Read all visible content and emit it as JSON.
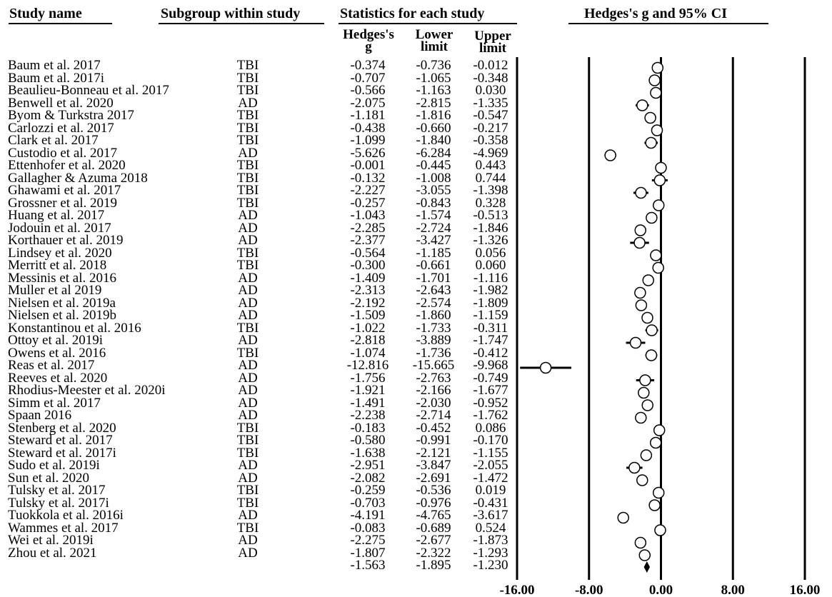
{
  "headers": {
    "study_name": "Study name",
    "subgroup": "Subgroup within study",
    "statistics": "Statistics for each study",
    "ci": "Hedges's g and 95% CI",
    "g_line1": "Hedges's",
    "g_line2": "g",
    "lower_line1": "Lower",
    "lower_line2": "limit",
    "upper_line1": "Upper",
    "upper_line2": "limit"
  },
  "chart_data": {
    "type": "forest",
    "x_ticks": [
      "-16.00",
      "-8.00",
      "0.00",
      "8.00",
      "16.00"
    ],
    "xlim": [
      -16,
      16
    ],
    "studies": [
      {
        "name": "Baum et al. 2017",
        "group": "TBI",
        "g": "-0.374",
        "lower": "-0.736",
        "upper": "-0.012"
      },
      {
        "name": "Baum et al. 2017i",
        "group": "TBI",
        "g": "-0.707",
        "lower": "-1.065",
        "upper": "-0.348"
      },
      {
        "name": "Beaulieu-Bonneau et al. 2017",
        "group": "TBI",
        "g": "-0.566",
        "lower": "-1.163",
        "upper": "0.030"
      },
      {
        "name": "Benwell et al. 2020",
        "group": "AD",
        "g": "-2.075",
        "lower": "-2.815",
        "upper": "-1.335"
      },
      {
        "name": "Byom & Turkstra 2017",
        "group": "TBI",
        "g": "-1.181",
        "lower": "-1.816",
        "upper": "-0.547"
      },
      {
        "name": "Carlozzi et al. 2017",
        "group": "TBI",
        "g": "-0.438",
        "lower": "-0.660",
        "upper": "-0.217"
      },
      {
        "name": "Clark et al. 2017",
        "group": "TBI",
        "g": "-1.099",
        "lower": "-1.840",
        "upper": "-0.358"
      },
      {
        "name": "Custodio et al. 2017",
        "group": "AD",
        "g": "-5.626",
        "lower": "-6.284",
        "upper": "-4.969"
      },
      {
        "name": "Ettenhofer et al. 2020",
        "group": "TBI",
        "g": "-0.001",
        "lower": "-0.445",
        "upper": "0.443"
      },
      {
        "name": "Gallagher & Azuma 2018",
        "group": "TBI",
        "g": "-0.132",
        "lower": "-1.008",
        "upper": "0.744"
      },
      {
        "name": "Ghawami et al. 2017",
        "group": "TBI",
        "g": "-2.227",
        "lower": "-3.055",
        "upper": "-1.398"
      },
      {
        "name": "Grossner et al. 2019",
        "group": "TBI",
        "g": "-0.257",
        "lower": "-0.843",
        "upper": "0.328"
      },
      {
        "name": "Huang et al. 2017",
        "group": "AD",
        "g": "-1.043",
        "lower": "-1.574",
        "upper": "-0.513"
      },
      {
        "name": "Jodouin et al. 2017",
        "group": "AD",
        "g": "-2.285",
        "lower": "-2.724",
        "upper": "-1.846"
      },
      {
        "name": "Korthauer et al. 2019",
        "group": "AD",
        "g": "-2.377",
        "lower": "-3.427",
        "upper": "-1.326"
      },
      {
        "name": "Lindsey et al. 2020",
        "group": "TBI",
        "g": "-0.564",
        "lower": "-1.185",
        "upper": "0.056"
      },
      {
        "name": "Merritt et al. 2018",
        "group": "TBI",
        "g": "-0.300",
        "lower": "-0.661",
        "upper": "0.060"
      },
      {
        "name": "Messinis et al. 2016",
        "group": "AD",
        "g": "-1.409",
        "lower": "-1.701",
        "upper": "-1.116"
      },
      {
        "name": "Muller et al 2019",
        "group": "AD",
        "g": "-2.313",
        "lower": "-2.643",
        "upper": "-1.982"
      },
      {
        "name": "Nielsen et al. 2019a",
        "group": "AD",
        "g": "-2.192",
        "lower": "-2.574",
        "upper": "-1.809"
      },
      {
        "name": "Nielsen et al. 2019b",
        "group": "AD",
        "g": "-1.509",
        "lower": "-1.860",
        "upper": "-1.159"
      },
      {
        "name": "Konstantinou et al. 2016",
        "group": "TBI",
        "g": "-1.022",
        "lower": "-1.733",
        "upper": "-0.311"
      },
      {
        "name": "Ottoy et al. 2019i",
        "group": "AD",
        "g": "-2.818",
        "lower": "-3.889",
        "upper": "-1.747"
      },
      {
        "name": "Owens et al. 2016",
        "group": "TBI",
        "g": "-1.074",
        "lower": "-1.736",
        "upper": "-0.412"
      },
      {
        "name": "Reas et al. 2017",
        "group": "AD",
        "g": "-12.816",
        "lower": "-15.665",
        "upper": "-9.968"
      },
      {
        "name": "Reeves et al. 2020",
        "group": "AD",
        "g": "-1.756",
        "lower": "-2.763",
        "upper": "-0.749"
      },
      {
        "name": "Rhodius-Meester et al. 2020i",
        "group": "AD",
        "g": "-1.921",
        "lower": "-2.166",
        "upper": "-1.677"
      },
      {
        "name": "Simm et al. 2017",
        "group": "AD",
        "g": "-1.491",
        "lower": "-2.030",
        "upper": "-0.952"
      },
      {
        "name": "Spaan 2016",
        "group": "AD",
        "g": "-2.238",
        "lower": "-2.714",
        "upper": "-1.762"
      },
      {
        "name": "Stenberg et al. 2020",
        "group": "TBI",
        "g": "-0.183",
        "lower": "-0.452",
        "upper": "0.086"
      },
      {
        "name": "Steward et al. 2017",
        "group": "TBI",
        "g": "-0.580",
        "lower": "-0.991",
        "upper": "-0.170"
      },
      {
        "name": "Steward et al. 2017i",
        "group": "TBI",
        "g": "-1.638",
        "lower": "-2.121",
        "upper": "-1.155"
      },
      {
        "name": "Sudo et al. 2019i",
        "group": "AD",
        "g": "-2.951",
        "lower": "-3.847",
        "upper": "-2.055"
      },
      {
        "name": "Sun et al. 2020",
        "group": "AD",
        "g": "-2.082",
        "lower": "-2.691",
        "upper": "-1.472"
      },
      {
        "name": "Tulsky et al. 2017",
        "group": "TBI",
        "g": "-0.259",
        "lower": "-0.536",
        "upper": "0.019"
      },
      {
        "name": "Tulsky et al. 2017i",
        "group": "TBI",
        "g": "-0.703",
        "lower": "-0.976",
        "upper": "-0.431"
      },
      {
        "name": "Tuokkola et al. 2016i",
        "group": "AD",
        "g": "-4.191",
        "lower": "-4.765",
        "upper": "-3.617"
      },
      {
        "name": "Wammes et al. 2017",
        "group": "TBI",
        "g": "-0.083",
        "lower": "-0.689",
        "upper": "0.524"
      },
      {
        "name": "Wei et al. 2019i",
        "group": "AD",
        "g": "-2.275",
        "lower": "-2.677",
        "upper": "-1.873"
      },
      {
        "name": "Zhou et al. 2021",
        "group": "AD",
        "g": "-1.807",
        "lower": "-2.322",
        "upper": "-1.293"
      }
    ],
    "summary": {
      "g": "-1.563",
      "lower": "-1.895",
      "upper": "-1.230"
    }
  }
}
